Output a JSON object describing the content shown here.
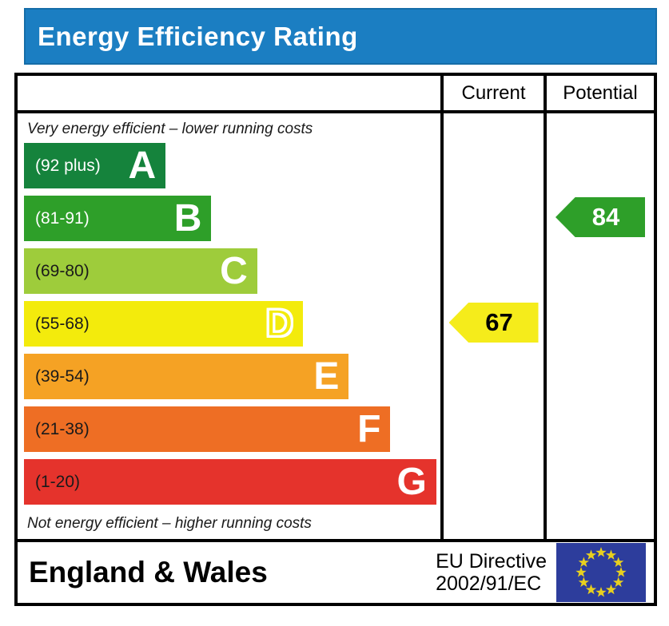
{
  "title": "Energy Efficiency Rating",
  "header": {
    "current": "Current",
    "potential": "Potential"
  },
  "notes": {
    "top": "Very energy efficient – lower running costs",
    "bottom": "Not energy efficient – higher running costs"
  },
  "bands": [
    {
      "letter": "A",
      "range": "(92 plus)",
      "color": "#15833c",
      "range_color": "#ffffff",
      "width_pct": 34,
      "row": 0
    },
    {
      "letter": "B",
      "range": "(81-91)",
      "color": "#2e9f29",
      "range_color": "#ffffff",
      "width_pct": 45,
      "row": 1
    },
    {
      "letter": "C",
      "range": "(69-80)",
      "color": "#9ecc3b",
      "range_color": "#1a1a1a",
      "width_pct": 56,
      "row": 2
    },
    {
      "letter": "D",
      "range": "(55-68)",
      "color": "#f3eb0c",
      "range_color": "#1a1a1a",
      "width_pct": 67,
      "row": 3,
      "letter_style": "outline"
    },
    {
      "letter": "E",
      "range": "(39-54)",
      "color": "#f5a224",
      "range_color": "#1a1a1a",
      "width_pct": 78,
      "row": 4
    },
    {
      "letter": "F",
      "range": "(21-38)",
      "color": "#ee6e24",
      "range_color": "#1a1a1a",
      "width_pct": 88,
      "row": 5
    },
    {
      "letter": "G",
      "range": "(1-20)",
      "color": "#e5332c",
      "range_color": "#1a1a1a",
      "width_pct": 99,
      "row": 6
    }
  ],
  "ratings": {
    "current": {
      "value": "67",
      "band": "D",
      "row": 3,
      "arrow_color": "#f5ec1b",
      "text_color": "#000000"
    },
    "potential": {
      "value": "84",
      "band": "B",
      "row": 1,
      "arrow_color": "#2e9f29",
      "text_color": "#ffffff"
    }
  },
  "footer": {
    "region": "England & Wales",
    "directive_line1": "EU Directive",
    "directive_line2": "2002/91/EC"
  },
  "colors": {
    "title_bg": "#1b7ec2",
    "border": "#000000",
    "flag_bg": "#2d3d9c",
    "flag_star": "#e8d01f"
  },
  "chart_data": {
    "type": "bar",
    "orientation": "horizontal",
    "title": "Energy Efficiency Rating",
    "categories": [
      "A",
      "B",
      "C",
      "D",
      "E",
      "F",
      "G"
    ],
    "band_score_ranges": [
      "92 plus",
      "81-91",
      "69-80",
      "55-68",
      "39-54",
      "21-38",
      "1-20"
    ],
    "band_colors": [
      "#15833c",
      "#2e9f29",
      "#9ecc3b",
      "#f3eb0c",
      "#f5a224",
      "#ee6e24",
      "#e5332c"
    ],
    "relative_bar_widths_pct": [
      34,
      45,
      56,
      67,
      78,
      88,
      99
    ],
    "columns": [
      "Current",
      "Potential"
    ],
    "markers": [
      {
        "name": "Current",
        "value": 67,
        "band": "D",
        "color": "#f5ec1b"
      },
      {
        "name": "Potential",
        "value": 84,
        "band": "B",
        "color": "#2e9f29"
      }
    ],
    "top_annotation": "Very energy efficient – lower running costs",
    "bottom_annotation": "Not energy efficient – higher running costs",
    "footer_region": "England & Wales",
    "eu_directive": "EU Directive 2002/91/EC"
  }
}
